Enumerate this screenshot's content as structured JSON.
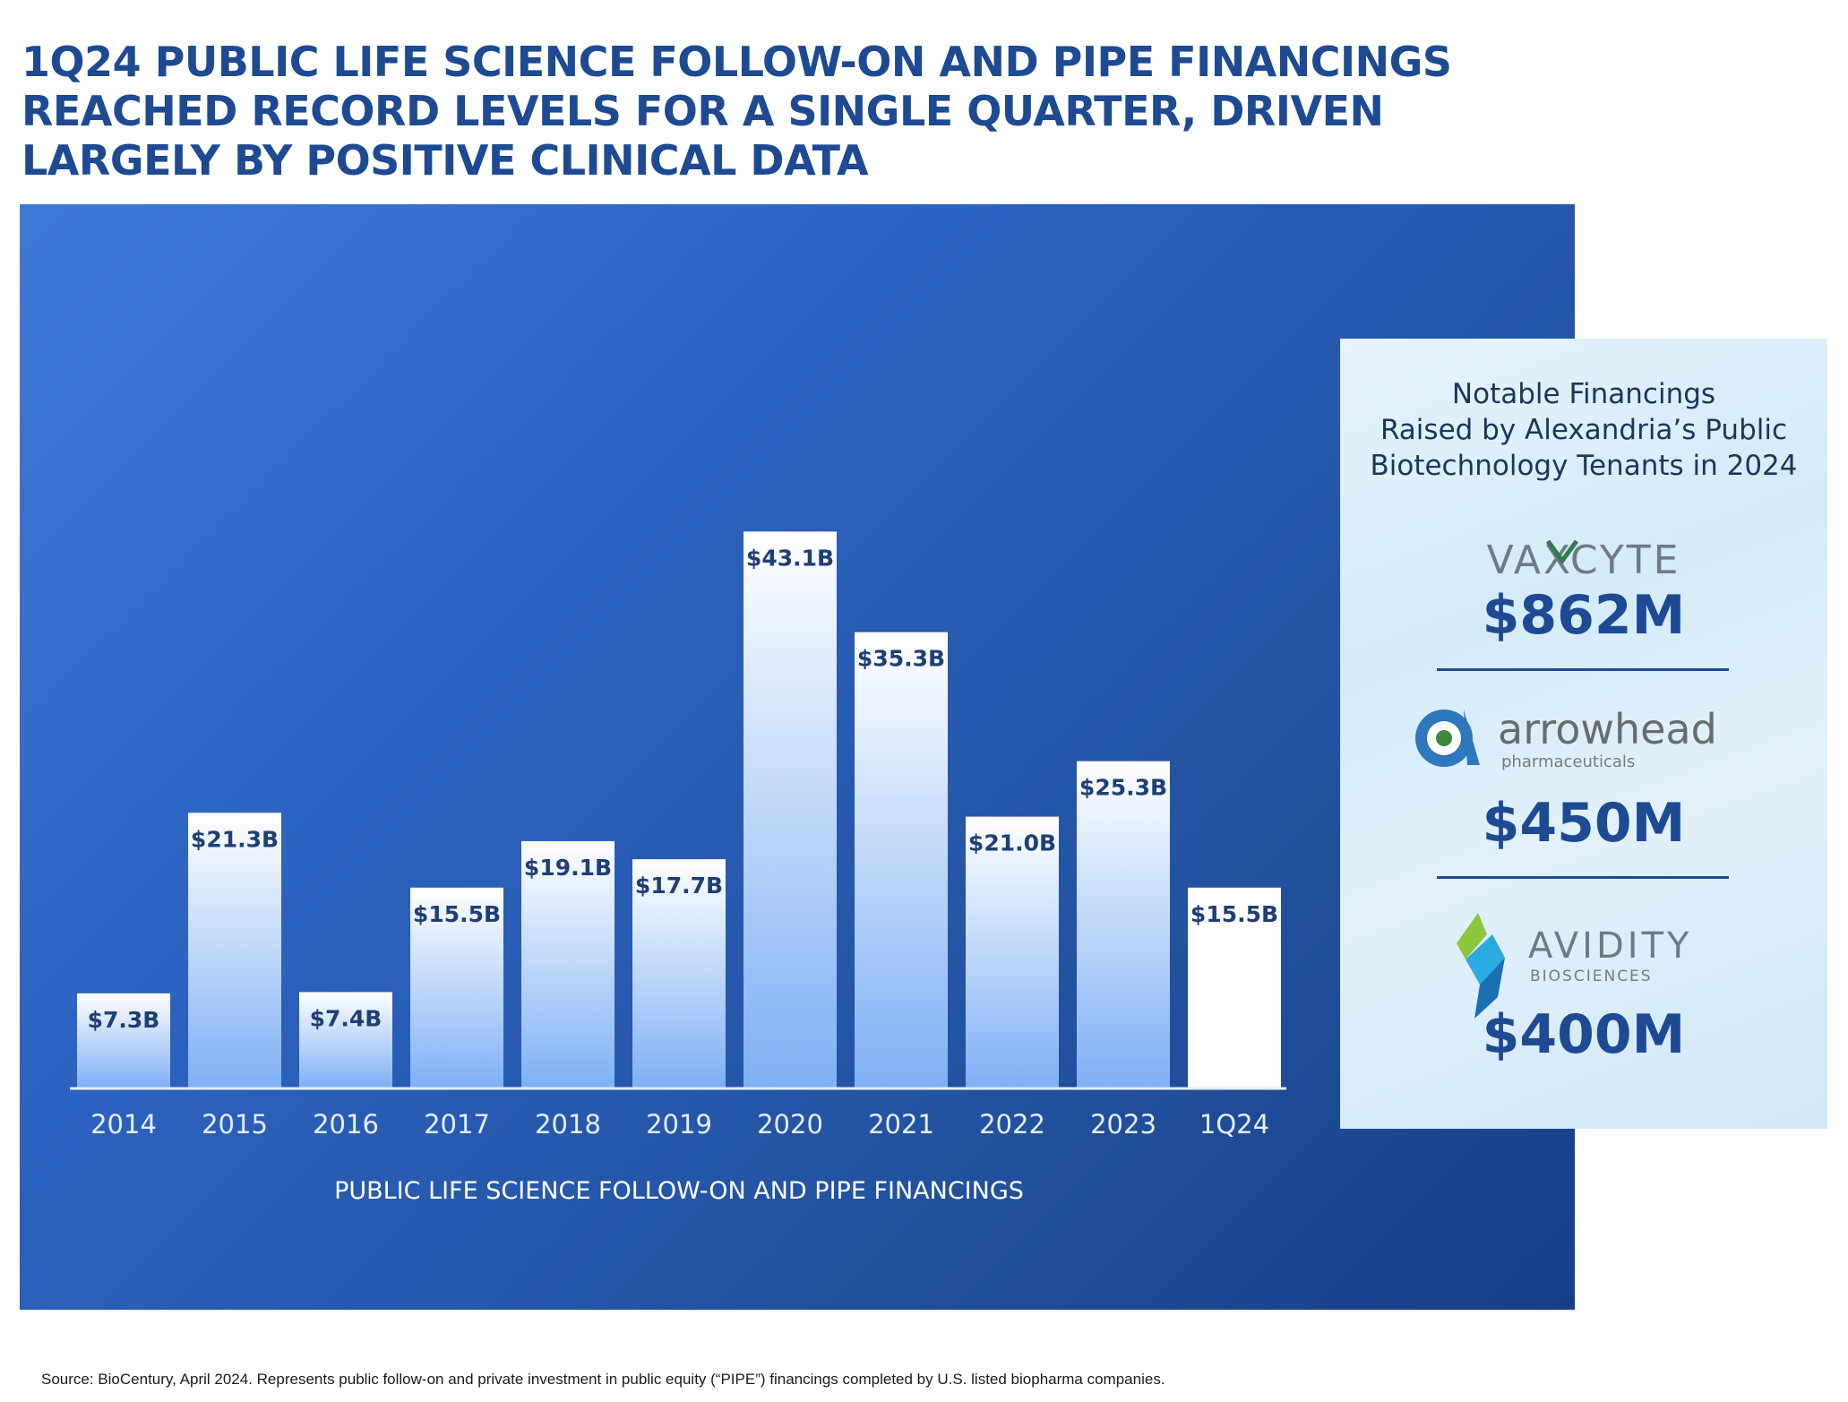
{
  "title_lines": [
    "1Q24 PUBLIC LIFE SCIENCE FOLLOW-ON AND PIPE FINANCINGS",
    "REACHED RECORD LEVELS FOR A SINGLE QUARTER, DRIVEN",
    "LARGELY BY POSITIVE CLINICAL DATA"
  ],
  "chart_data": {
    "type": "bar",
    "categories": [
      "2014",
      "2015",
      "2016",
      "2017",
      "2018",
      "2019",
      "2020",
      "2021",
      "2022",
      "2023",
      "1Q24"
    ],
    "values": [
      7.3,
      21.3,
      7.4,
      15.5,
      19.1,
      17.7,
      43.1,
      35.3,
      21.0,
      25.3,
      15.5
    ],
    "value_labels": [
      "$7.3B",
      "$21.3B",
      "$7.4B",
      "$15.5B",
      "$19.1B",
      "$17.7B",
      "$43.1B",
      "$35.3B",
      "$21.0B",
      "$25.3B",
      "$15.5B"
    ],
    "xlabel": "PUBLIC LIFE SCIENCE FOLLOW-ON AND PIPE FINANCINGS",
    "ylabel": "",
    "ylim": [
      0,
      45
    ],
    "grid": false,
    "highlight_category": "1Q24",
    "colors": {
      "bar_top": "#ffffff",
      "bar_bottom": "#7fb0f4",
      "highlight_bar": "#ffffff",
      "value_label": "#1d3f75",
      "axis": "#e6eefb",
      "tick_label": "#e6eefb"
    }
  },
  "sidebar": {
    "heading_lines": [
      "Notable Financings",
      "Raised by Alexandria’s Public",
      "Biotechnology Tenants in 2024"
    ],
    "companies": [
      {
        "logo_text": "VAXCYTE",
        "amount": "$862M",
        "icon": "vaxcyte-logo"
      },
      {
        "logo_text": "arrowhead",
        "logo_subtext": "pharmaceuticals",
        "amount": "$450M",
        "icon": "arrowhead-logo"
      },
      {
        "logo_text": "AVIDITY",
        "logo_subtext": "BIOSCIENCES",
        "amount": "$400M",
        "icon": "avidity-logo"
      }
    ]
  },
  "source_note": "Source: BioCentury, April 2024. Represents public follow-on and private investment in public equity (“PIPE”) financings completed by U.S. listed biopharma companies.",
  "colors": {
    "title": "#1d4a92",
    "panel_gradient_start": "#3f7ad6",
    "panel_gradient_end": "#163f86",
    "sidebar_bg": "#dcedf9",
    "sidebar_text": "#1c355e",
    "amount": "#1d4a92"
  }
}
